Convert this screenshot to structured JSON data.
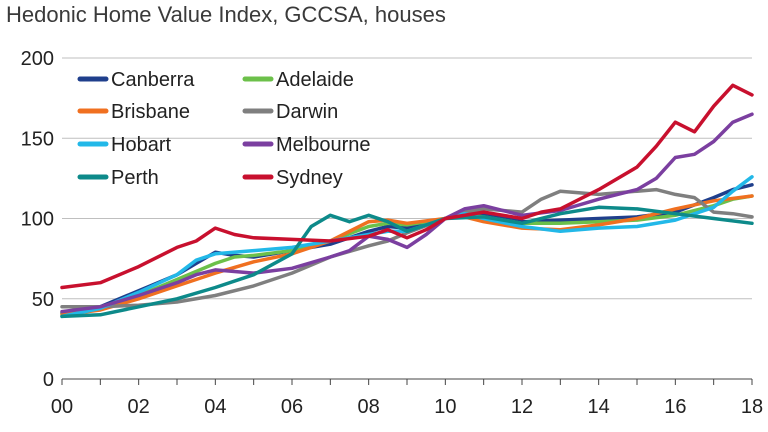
{
  "title": "Hedonic Home Value Index, GCCSA, houses",
  "chart_data": {
    "type": "line",
    "title": "Hedonic Home Value Index, GCCSA, houses",
    "xlabel": "",
    "ylabel": "",
    "xlim": [
      2000,
      2018
    ],
    "ylim": [
      0,
      200
    ],
    "x_ticks": [
      "00",
      "02",
      "04",
      "06",
      "08",
      "10",
      "12",
      "14",
      "16",
      "18"
    ],
    "y_ticks": [
      "0",
      "50",
      "100",
      "150",
      "200"
    ],
    "grid": "horizontal",
    "legend_position": "top-left",
    "series": [
      {
        "name": "Canberra",
        "color": "#1f3f8c",
        "points": [
          [
            2000,
            41
          ],
          [
            2001,
            45
          ],
          [
            2002,
            55
          ],
          [
            2003,
            65
          ],
          [
            2003.5,
            72
          ],
          [
            2004,
            79
          ],
          [
            2004.5,
            77
          ],
          [
            2005,
            76
          ],
          [
            2006,
            80
          ],
          [
            2007,
            84
          ],
          [
            2008,
            92
          ],
          [
            2008.5,
            95
          ],
          [
            2009,
            94
          ],
          [
            2009.5,
            97
          ],
          [
            2010,
            100
          ],
          [
            2010.5,
            103
          ],
          [
            2011,
            102
          ],
          [
            2012,
            98
          ],
          [
            2013,
            99
          ],
          [
            2014,
            100
          ],
          [
            2015,
            101
          ],
          [
            2016,
            104
          ],
          [
            2017,
            113
          ],
          [
            2017.5,
            118
          ],
          [
            2018,
            121
          ]
        ]
      },
      {
        "name": "Adelaide",
        "color": "#6cc04a",
        "points": [
          [
            2000,
            41
          ],
          [
            2001,
            44
          ],
          [
            2002,
            52
          ],
          [
            2003,
            62
          ],
          [
            2004,
            72
          ],
          [
            2004.5,
            76
          ],
          [
            2005,
            77
          ],
          [
            2006,
            80
          ],
          [
            2007,
            86
          ],
          [
            2008,
            95
          ],
          [
            2008.5,
            97
          ],
          [
            2009,
            96
          ],
          [
            2010,
            100
          ],
          [
            2010.5,
            102
          ],
          [
            2011,
            101
          ],
          [
            2012,
            97
          ],
          [
            2013,
            97
          ],
          [
            2014,
            98
          ],
          [
            2015,
            99
          ],
          [
            2016,
            102
          ],
          [
            2017,
            108
          ],
          [
            2017.5,
            112
          ],
          [
            2018,
            114
          ]
        ]
      },
      {
        "name": "Brisbane",
        "color": "#f07020",
        "points": [
          [
            2000,
            40
          ],
          [
            2001,
            43
          ],
          [
            2002,
            50
          ],
          [
            2003,
            58
          ],
          [
            2004,
            66
          ],
          [
            2005,
            73
          ],
          [
            2006,
            78
          ],
          [
            2007,
            86
          ],
          [
            2008,
            98
          ],
          [
            2008.5,
            99
          ],
          [
            2009,
            97
          ],
          [
            2010,
            100
          ],
          [
            2010.5,
            101
          ],
          [
            2011,
            98
          ],
          [
            2012,
            94
          ],
          [
            2013,
            93
          ],
          [
            2014,
            96
          ],
          [
            2015,
            100
          ],
          [
            2016,
            106
          ],
          [
            2017,
            111
          ],
          [
            2018,
            114
          ]
        ]
      },
      {
        "name": "Darwin",
        "color": "#7f7f7f",
        "points": [
          [
            2000,
            45
          ],
          [
            2001,
            45
          ],
          [
            2002,
            46
          ],
          [
            2003,
            48
          ],
          [
            2004,
            52
          ],
          [
            2005,
            58
          ],
          [
            2006,
            66
          ],
          [
            2007,
            76
          ],
          [
            2008,
            83
          ],
          [
            2008.5,
            86
          ],
          [
            2009,
            91
          ],
          [
            2010,
            100
          ],
          [
            2010.5,
            104
          ],
          [
            2011,
            106
          ],
          [
            2012,
            104
          ],
          [
            2012.5,
            112
          ],
          [
            2013,
            117
          ],
          [
            2014,
            115
          ],
          [
            2015,
            117
          ],
          [
            2015.5,
            118
          ],
          [
            2016,
            115
          ],
          [
            2016.5,
            113
          ],
          [
            2017,
            104
          ],
          [
            2017.5,
            103
          ],
          [
            2018,
            101
          ]
        ]
      },
      {
        "name": "Hobart",
        "color": "#22b8e8",
        "points": [
          [
            2000,
            39
          ],
          [
            2001,
            44
          ],
          [
            2002,
            54
          ],
          [
            2003,
            65
          ],
          [
            2003.5,
            74
          ],
          [
            2004,
            78
          ],
          [
            2005,
            80
          ],
          [
            2006,
            82
          ],
          [
            2007,
            86
          ],
          [
            2008,
            90
          ],
          [
            2008.5,
            92
          ],
          [
            2009,
            92
          ],
          [
            2010,
            100
          ],
          [
            2010.5,
            103
          ],
          [
            2011,
            100
          ],
          [
            2012,
            95
          ],
          [
            2013,
            92
          ],
          [
            2014,
            94
          ],
          [
            2015,
            95
          ],
          [
            2016,
            99
          ],
          [
            2017,
            107
          ],
          [
            2017.5,
            117
          ],
          [
            2018,
            126
          ]
        ]
      },
      {
        "name": "Melbourne",
        "color": "#7b3fa0",
        "points": [
          [
            2000,
            42
          ],
          [
            2001,
            45
          ],
          [
            2002,
            52
          ],
          [
            2003,
            60
          ],
          [
            2003.5,
            65
          ],
          [
            2004,
            68
          ],
          [
            2005,
            66
          ],
          [
            2006,
            69
          ],
          [
            2007,
            76
          ],
          [
            2007.5,
            80
          ],
          [
            2008,
            89
          ],
          [
            2008.5,
            87
          ],
          [
            2009,
            82
          ],
          [
            2009.5,
            90
          ],
          [
            2010,
            100
          ],
          [
            2010.5,
            106
          ],
          [
            2011,
            108
          ],
          [
            2012,
            102
          ],
          [
            2013,
            105
          ],
          [
            2014,
            112
          ],
          [
            2015,
            118
          ],
          [
            2015.5,
            125
          ],
          [
            2016,
            138
          ],
          [
            2016.5,
            140
          ],
          [
            2017,
            148
          ],
          [
            2017.5,
            160
          ],
          [
            2018,
            165
          ]
        ]
      },
      {
        "name": "Perth",
        "color": "#0d8a8a",
        "points": [
          [
            2000,
            39
          ],
          [
            2001,
            40
          ],
          [
            2002,
            45
          ],
          [
            2003,
            50
          ],
          [
            2004,
            57
          ],
          [
            2005,
            65
          ],
          [
            2006,
            78
          ],
          [
            2006.5,
            95
          ],
          [
            2007,
            102
          ],
          [
            2007.5,
            98
          ],
          [
            2008,
            102
          ],
          [
            2008.5,
            98
          ],
          [
            2009,
            92
          ],
          [
            2010,
            100
          ],
          [
            2011,
            101
          ],
          [
            2012,
            97
          ],
          [
            2013,
            103
          ],
          [
            2014,
            107
          ],
          [
            2015,
            106
          ],
          [
            2016,
            103
          ],
          [
            2017,
            100
          ],
          [
            2018,
            97
          ]
        ]
      },
      {
        "name": "Sydney",
        "color": "#c8102e",
        "points": [
          [
            2000,
            57
          ],
          [
            2001,
            60
          ],
          [
            2002,
            70
          ],
          [
            2003,
            82
          ],
          [
            2003.5,
            86
          ],
          [
            2004,
            94
          ],
          [
            2004.5,
            90
          ],
          [
            2005,
            88
          ],
          [
            2006,
            87
          ],
          [
            2007,
            86
          ],
          [
            2008,
            89
          ],
          [
            2008.5,
            93
          ],
          [
            2009,
            88
          ],
          [
            2009.5,
            93
          ],
          [
            2010,
            100
          ],
          [
            2011,
            104
          ],
          [
            2012,
            100
          ],
          [
            2012.5,
            104
          ],
          [
            2013,
            106
          ],
          [
            2014,
            118
          ],
          [
            2015,
            132
          ],
          [
            2015.5,
            145
          ],
          [
            2016,
            160
          ],
          [
            2016.5,
            154
          ],
          [
            2017,
            170
          ],
          [
            2017.5,
            183
          ],
          [
            2018,
            177
          ]
        ]
      }
    ]
  }
}
